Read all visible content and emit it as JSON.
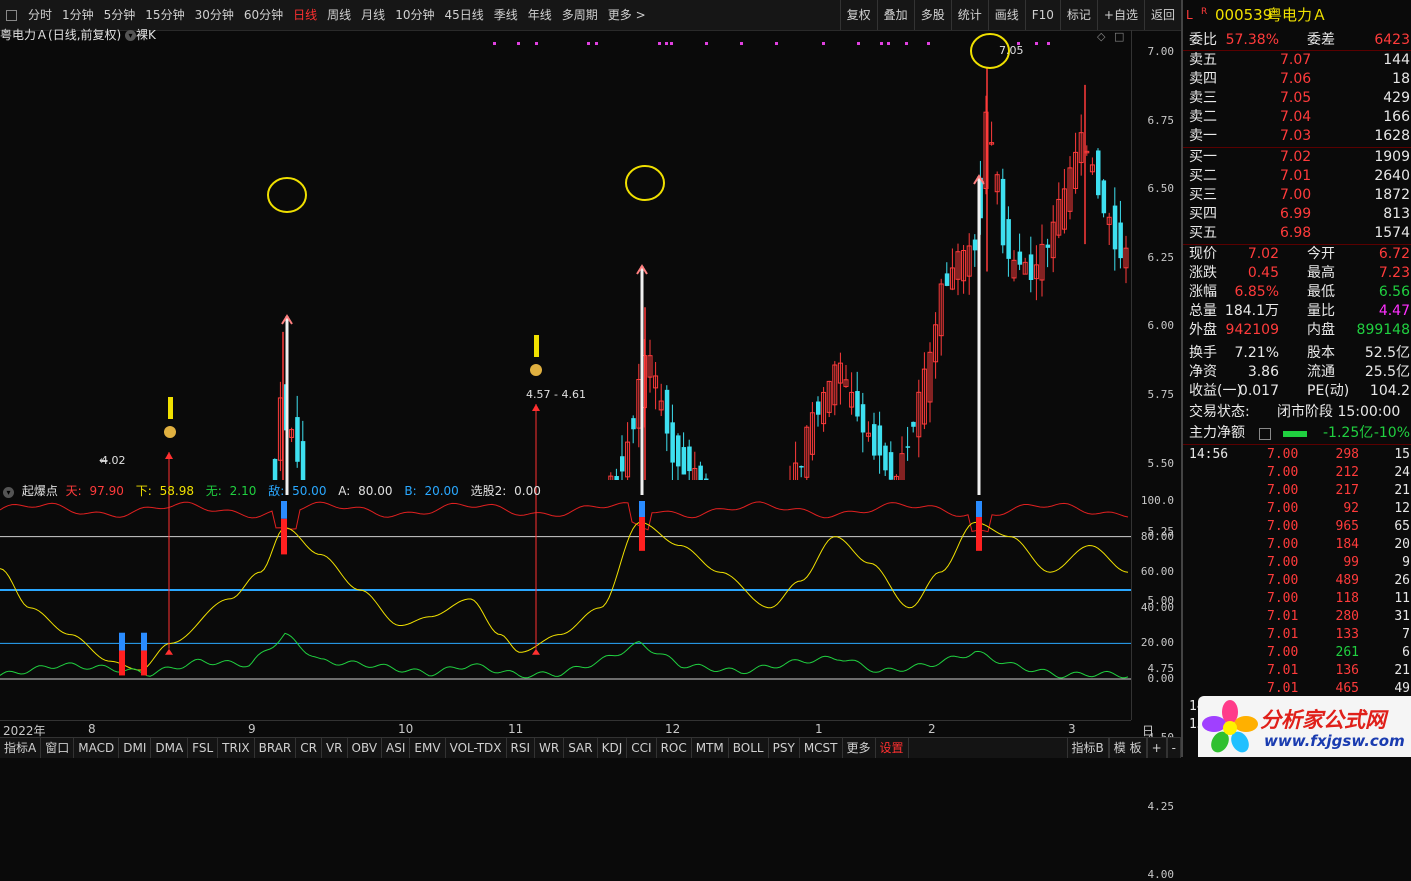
{
  "topbar": {
    "items": [
      "分时",
      "1分钟",
      "5分钟",
      "15分钟",
      "30分钟",
      "60分钟",
      "日线",
      "周线",
      "月线",
      "10分钟",
      "45日线",
      "季线",
      "年线",
      "多周期",
      "更多 >"
    ],
    "active": "日线",
    "right_items": [
      "复权",
      "叠加",
      "多股",
      "统计",
      "画线",
      "F10",
      "标记",
      "+自选",
      "返回"
    ]
  },
  "chart_header": {
    "stock_name": "粤电力Ａ",
    "mode": "(日线,前复权)",
    "icon": "chevron-down-icon",
    "extra": "裸K"
  },
  "price_axis": [
    "7.00",
    "6.75",
    "6.50",
    "6.25",
    "6.00",
    "5.75",
    "5.50",
    "5.25",
    "5.00",
    "4.75",
    "4.50",
    "4.25",
    "4.00"
  ],
  "annotations": {
    "high": "7.05",
    "low": "4.02",
    "range": "4.57 - 4.61"
  },
  "indicator": {
    "name": "起爆点",
    "tian_label": "天:",
    "tian": "97.90",
    "xia_label": "下:",
    "xia": "58.98",
    "wu_label": "无:",
    "wu": "2.10",
    "di_label": "敌:",
    "di": "50.00",
    "a_label": "A:",
    "a": "80.00",
    "b_label": "B:",
    "b": "20.00",
    "xg_label": "选股2:",
    "xg": "0.00",
    "axis": [
      "100.0",
      "80.00",
      "60.00",
      "40.00",
      "20.00",
      "0.00"
    ]
  },
  "time_axis": {
    "labels": [
      "2022年",
      "8",
      "9",
      "10",
      "11",
      "12",
      "1",
      "2",
      "3"
    ],
    "period": "日线"
  },
  "bottombar": {
    "items": [
      "指标A",
      "窗口",
      "MACD",
      "DMI",
      "DMA",
      "FSL",
      "TRIX",
      "BRAR",
      "CR",
      "VR",
      "OBV",
      "ASI",
      "EMV",
      "VOL-TDX",
      "RSI",
      "WR",
      "SAR",
      "KDJ",
      "CCI",
      "ROC",
      "MTM",
      "BOLL",
      "PSY",
      "MCST",
      "更多",
      "设置"
    ],
    "right": [
      "指标B",
      "模 板",
      "+",
      "-"
    ]
  },
  "quote": {
    "flag": "L",
    "flag2": "R",
    "code": "000539",
    "name": "粤电力Ａ",
    "weibi_label": "委比",
    "weibi": "57.38%",
    "weicha_label": "委差",
    "weicha": "6423",
    "asks": [
      {
        "label": "卖五",
        "price": "7.07",
        "vol": "144"
      },
      {
        "label": "卖四",
        "price": "7.06",
        "vol": "18"
      },
      {
        "label": "卖三",
        "price": "7.05",
        "vol": "429"
      },
      {
        "label": "卖二",
        "price": "7.04",
        "vol": "166"
      },
      {
        "label": "卖一",
        "price": "7.03",
        "vol": "1628"
      }
    ],
    "bids": [
      {
        "label": "买一",
        "price": "7.02",
        "vol": "1909"
      },
      {
        "label": "买二",
        "price": "7.01",
        "vol": "2640"
      },
      {
        "label": "买三",
        "price": "7.00",
        "vol": "1872"
      },
      {
        "label": "买四",
        "price": "6.99",
        "vol": "813"
      },
      {
        "label": "买五",
        "price": "6.98",
        "vol": "1574"
      }
    ],
    "stats": [
      {
        "l1": "现价",
        "v1": "7.02",
        "c1": "red",
        "l2": "今开",
        "v2": "6.72",
        "c2": "red"
      },
      {
        "l1": "涨跌",
        "v1": "0.45",
        "c1": "red",
        "l2": "最高",
        "v2": "7.23",
        "c2": "red"
      },
      {
        "l1": "涨幅",
        "v1": "6.85%",
        "c1": "red",
        "l2": "最低",
        "v2": "6.56",
        "c2": "green"
      },
      {
        "l1": "总量",
        "v1": "184.1万",
        "c1": "white",
        "l2": "量比",
        "v2": "4.47",
        "c2": "mag"
      },
      {
        "l1": "外盘",
        "v1": "942109",
        "c1": "red",
        "l2": "内盘",
        "v2": "899148",
        "c2": "green"
      },
      {
        "l1": "换手",
        "v1": "7.21%",
        "c1": "white",
        "l2": "股本",
        "v2": "52.5亿",
        "c2": "white"
      },
      {
        "l1": "净资",
        "v1": "3.86",
        "c1": "white",
        "l2": "流通",
        "v2": "25.5亿",
        "c2": "white"
      },
      {
        "l1": "收益(一)",
        "v1": "0.017",
        "c1": "white",
        "l2": "PE(动)",
        "v2": "104.2",
        "c2": "white"
      }
    ],
    "status_label": "交易状态:",
    "status": "闭市阶段 15:00:00",
    "mainflow_label": "主力净额",
    "mainflow": "-1.25亿",
    "mainflow_pct": "-10%",
    "ticks": [
      {
        "t": "14:56",
        "p": "7.00",
        "v": "298",
        "n": "15",
        "c": "red"
      },
      {
        "t": "",
        "p": "7.00",
        "v": "212",
        "n": "24",
        "c": "red"
      },
      {
        "t": "",
        "p": "7.00",
        "v": "217",
        "n": "21",
        "c": "red"
      },
      {
        "t": "",
        "p": "7.00",
        "v": "92",
        "n": "12",
        "c": "red"
      },
      {
        "t": "",
        "p": "7.00",
        "v": "965",
        "n": "65",
        "c": "red"
      },
      {
        "t": "",
        "p": "7.00",
        "v": "184",
        "n": "20",
        "c": "red"
      },
      {
        "t": "",
        "p": "7.00",
        "v": "99",
        "n": "9",
        "c": "red"
      },
      {
        "t": "",
        "p": "7.00",
        "v": "489",
        "n": "26",
        "c": "red"
      },
      {
        "t": "",
        "p": "7.00",
        "v": "118",
        "n": "11",
        "c": "red"
      },
      {
        "t": "",
        "p": "7.01",
        "v": "280",
        "n": "31",
        "c": "red"
      },
      {
        "t": "",
        "p": "7.01",
        "v": "133",
        "n": "7",
        "c": "red"
      },
      {
        "t": "",
        "p": "7.00",
        "v": "261",
        "n": "6",
        "c": "green"
      },
      {
        "t": "",
        "p": "7.01",
        "v": "136",
        "n": "21",
        "c": "red"
      },
      {
        "t": "",
        "p": "7.01",
        "v": "465",
        "n": "49",
        "c": "red"
      },
      {
        "t": "14",
        "p": "",
        "v": "",
        "n": "",
        "c": "white"
      },
      {
        "t": "15",
        "p": "",
        "v": "",
        "n": "",
        "c": "white"
      }
    ]
  },
  "watermark": {
    "brand": "分析家公式网",
    "url": "www.fxjgsw.com"
  },
  "colors": {
    "up": "#ff3b3b",
    "down": "#3ee0f0",
    "bg": "#0a0a0a",
    "accent_blue": "#2aa8ff",
    "yellow": "#f0e000",
    "green": "#20d040"
  }
}
